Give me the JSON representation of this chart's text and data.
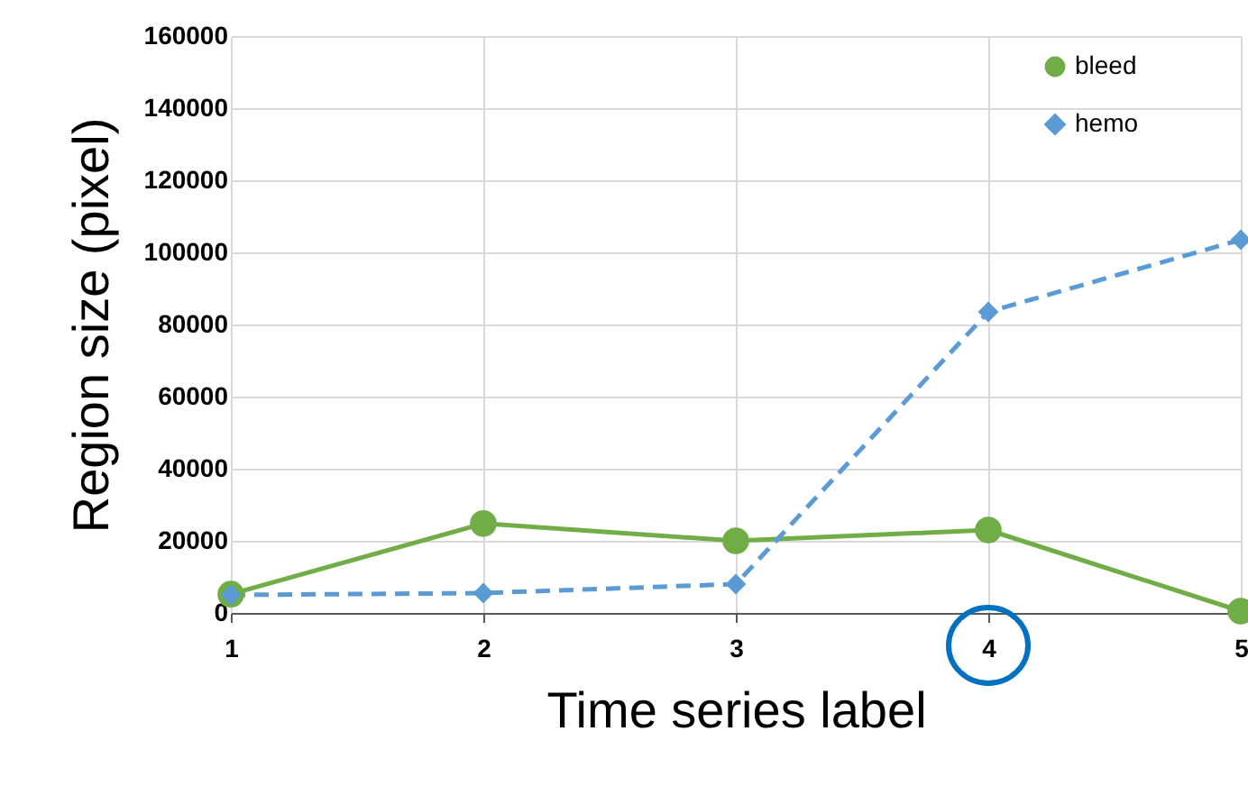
{
  "chart_data": {
    "type": "line",
    "xlabel": "Time series label",
    "ylabel": "Region size (pixel)",
    "x": [
      1,
      2,
      3,
      4,
      5
    ],
    "xlim": [
      1,
      5
    ],
    "xticks": [
      1,
      2,
      3,
      4,
      5
    ],
    "ylim": [
      0,
      160000
    ],
    "yticks": [
      0,
      20000,
      40000,
      60000,
      80000,
      100000,
      120000,
      140000,
      160000
    ],
    "grid": true,
    "legend": "top right",
    "series": [
      {
        "name": "bleed",
        "color": "#70ad47",
        "marker": "circle",
        "line_style": "solid",
        "values": [
          5200,
          24800,
          20000,
          23000,
          500
        ]
      },
      {
        "name": "hemo",
        "color": "#5b9bd5",
        "marker": "diamond",
        "line_style": "dashed",
        "values": [
          5000,
          5500,
          8000,
          83500,
          103500
        ]
      }
    ]
  }
}
